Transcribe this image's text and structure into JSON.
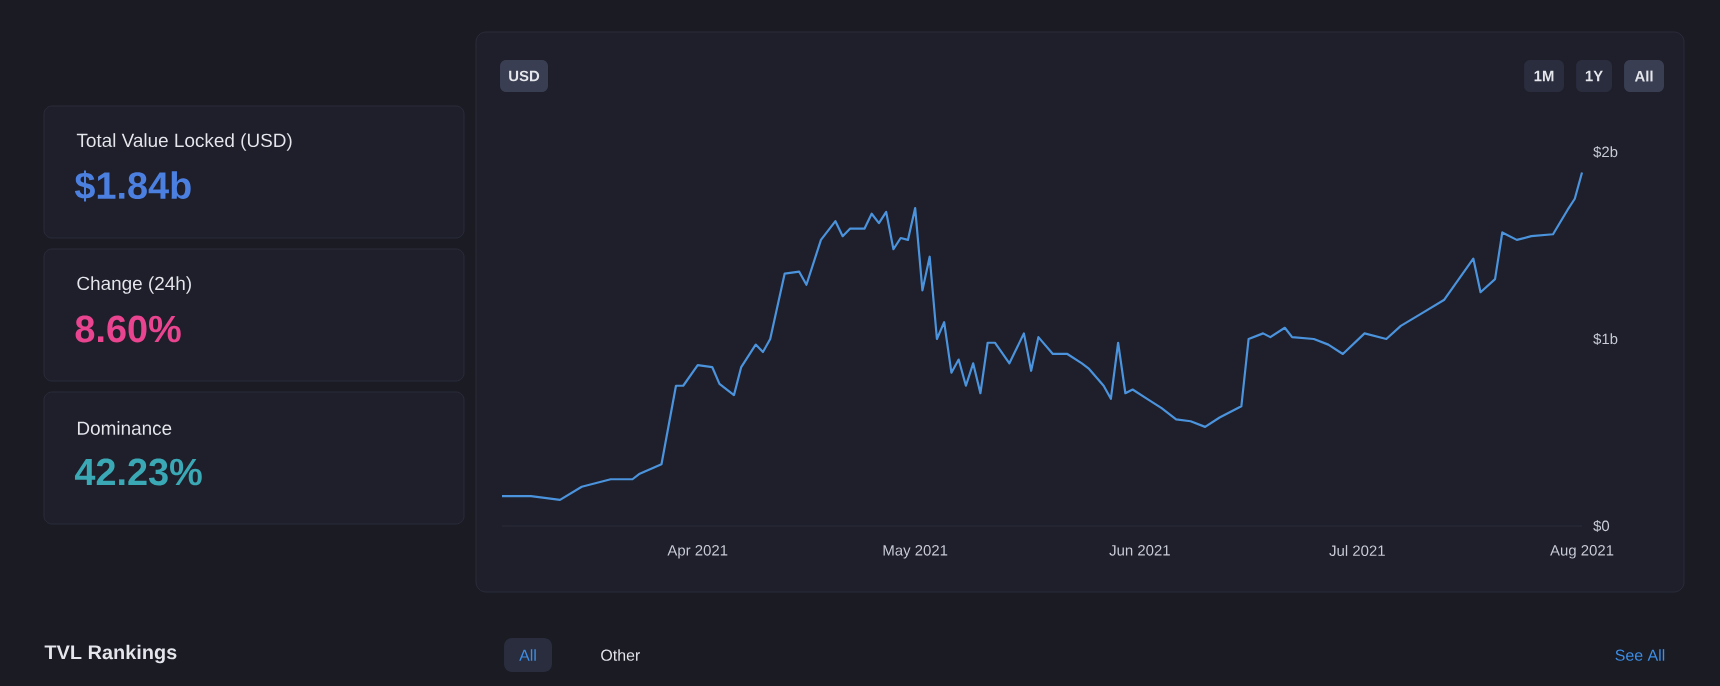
{
  "chart_data": [
    {
      "type": "other",
      "title": "Total Value Locked (USD)",
      "annotations": [
        "$1.84b"
      ]
    },
    {
      "type": "other",
      "title": "Change (24h)",
      "annotations": [
        "8.60%"
      ]
    },
    {
      "type": "other",
      "title": "Dominance",
      "annotations": [
        "42.23%"
      ]
    },
    {
      "type": "line",
      "color": "#4b93dc",
      "x": [
        "2021-03-05",
        "2021-03-09",
        "2021-03-13",
        "2021-03-16",
        "2021-03-20",
        "2021-03-23",
        "2021-03-24",
        "2021-03-27",
        "2021-03-29",
        "2021-03-30",
        "2021-04-01",
        "2021-04-03",
        "2021-04-04",
        "2021-04-06",
        "2021-04-07",
        "2021-04-09",
        "2021-04-10",
        "2021-04-11",
        "2021-04-13",
        "2021-04-15",
        "2021-04-16",
        "2021-04-18",
        "2021-04-20",
        "2021-04-21",
        "2021-04-22",
        "2021-04-24",
        "2021-04-25",
        "2021-04-26",
        "2021-04-27",
        "2021-04-28",
        "2021-04-29",
        "2021-04-30",
        "2021-05-01",
        "2021-05-02",
        "2021-05-03",
        "2021-05-04",
        "2021-05-05",
        "2021-05-06",
        "2021-05-07",
        "2021-05-08",
        "2021-05-09",
        "2021-05-10",
        "2021-05-11",
        "2021-05-12",
        "2021-05-14",
        "2021-05-16",
        "2021-05-17",
        "2021-05-18",
        "2021-05-20",
        "2021-05-22",
        "2021-05-24",
        "2021-05-25",
        "2021-05-27",
        "2021-05-28",
        "2021-05-29",
        "2021-05-30",
        "2021-05-31",
        "2021-06-02",
        "2021-06-04",
        "2021-06-06",
        "2021-06-08",
        "2021-06-10",
        "2021-06-12",
        "2021-06-15",
        "2021-06-16",
        "2021-06-18",
        "2021-06-19",
        "2021-06-21",
        "2021-06-22",
        "2021-06-25",
        "2021-06-27",
        "2021-06-29",
        "2021-07-02",
        "2021-07-05",
        "2021-07-07",
        "2021-07-10",
        "2021-07-13",
        "2021-07-15",
        "2021-07-17",
        "2021-07-18",
        "2021-07-20",
        "2021-07-21",
        "2021-07-23",
        "2021-07-25",
        "2021-07-28",
        "2021-07-30",
        "2021-07-31",
        "2021-08-01"
      ],
      "values": [
        0.16,
        0.16,
        0.14,
        0.21,
        0.25,
        0.25,
        0.28,
        0.33,
        0.75,
        0.75,
        0.86,
        0.85,
        0.76,
        0.7,
        0.85,
        0.97,
        0.93,
        1.0,
        1.35,
        1.36,
        1.29,
        1.53,
        1.63,
        1.55,
        1.59,
        1.59,
        1.67,
        1.62,
        1.68,
        1.48,
        1.54,
        1.53,
        1.7,
        1.26,
        1.44,
        1.0,
        1.09,
        0.82,
        0.89,
        0.75,
        0.87,
        0.71,
        0.98,
        0.98,
        0.87,
        1.03,
        0.83,
        1.01,
        0.92,
        0.92,
        0.87,
        0.84,
        0.75,
        0.68,
        0.98,
        0.71,
        0.73,
        0.68,
        0.63,
        0.57,
        0.56,
        0.53,
        0.58,
        0.64,
        1.0,
        1.03,
        1.01,
        1.06,
        1.01,
        1.0,
        0.97,
        0.92,
        1.03,
        1.0,
        1.07,
        1.14,
        1.21,
        1.32,
        1.43,
        1.25,
        1.32,
        1.57,
        1.53,
        1.55,
        1.56,
        1.69,
        1.75,
        1.89
      ],
      "xlim": [
        "2021-03-05",
        "2021-08-01"
      ],
      "xticks": [
        {
          "value": "2021-04-01",
          "label": "Apr 2021"
        },
        {
          "value": "2021-05-01",
          "label": "May 2021"
        },
        {
          "value": "2021-06-01",
          "label": "Jun 2021"
        },
        {
          "value": "2021-07-01",
          "label": "Jul 2021"
        },
        {
          "value": "2021-08-01",
          "label": "Aug 2021"
        }
      ],
      "ylim": [
        0,
        2
      ],
      "yticks": [
        {
          "value": 0,
          "label": "$0"
        },
        {
          "value": 1,
          "label": "$1b"
        },
        {
          "value": 2,
          "label": "$2b"
        }
      ],
      "annotations": [
        "USD",
        "1M",
        "1Y",
        "All"
      ]
    },
    {
      "type": "other",
      "title": "TVL Rankings",
      "annotations": [
        "All",
        "Other",
        "See All"
      ]
    }
  ]
}
